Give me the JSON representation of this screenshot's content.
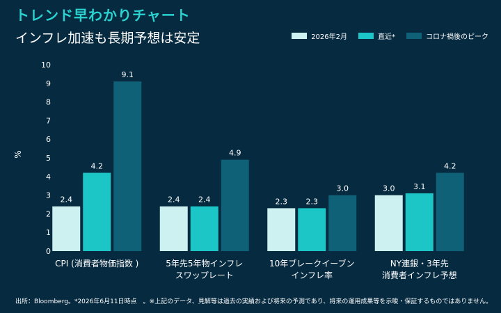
{
  "header": {
    "tag": "トレンド早わかりチャート"
  },
  "chart_data": {
    "type": "bar",
    "title": "インフレ加速も長期予想は安定",
    "ylabel": "%",
    "ylim": [
      0,
      10
    ],
    "yticks": [
      "0",
      "1",
      "2",
      "3",
      "4",
      "5",
      "6",
      "7",
      "8",
      "9",
      "10"
    ],
    "grid": false,
    "legend_position": "top-right",
    "categories": [
      [
        "CPI (消費者物価指数 )"
      ],
      [
        "5年先5年物インフレ",
        "スワップレート"
      ],
      [
        "10年ブレークイーブン",
        "インフレ率"
      ],
      [
        "NY連銀・3年先",
        "消費者インフレ予想"
      ]
    ],
    "series": [
      {
        "name": "2026年2月",
        "color": "#cdf1f1",
        "values": [
          2.4,
          2.4,
          2.3,
          3.0
        ],
        "labels": [
          "2.4",
          "2.4",
          "2.3",
          "3.0"
        ]
      },
      {
        "name": "直近*",
        "color": "#1cc6c6",
        "values": [
          4.2,
          2.4,
          2.3,
          3.1
        ],
        "labels": [
          "4.2",
          "2.4",
          "2.3",
          "3.1"
        ]
      },
      {
        "name": "コロナ禍後のピーク",
        "color": "#0f6177",
        "values": [
          9.1,
          4.9,
          3.0,
          4.2
        ],
        "labels": [
          "9.1",
          "4.9",
          "3.0",
          "4.2"
        ]
      }
    ]
  },
  "footnote": "出所：Bloomberg。*2026年6月11日時点　。※上記のデータ、見解等は過去の実績および将来の予測であり、将来の運用成果等を示唆・保証するものではありません。"
}
